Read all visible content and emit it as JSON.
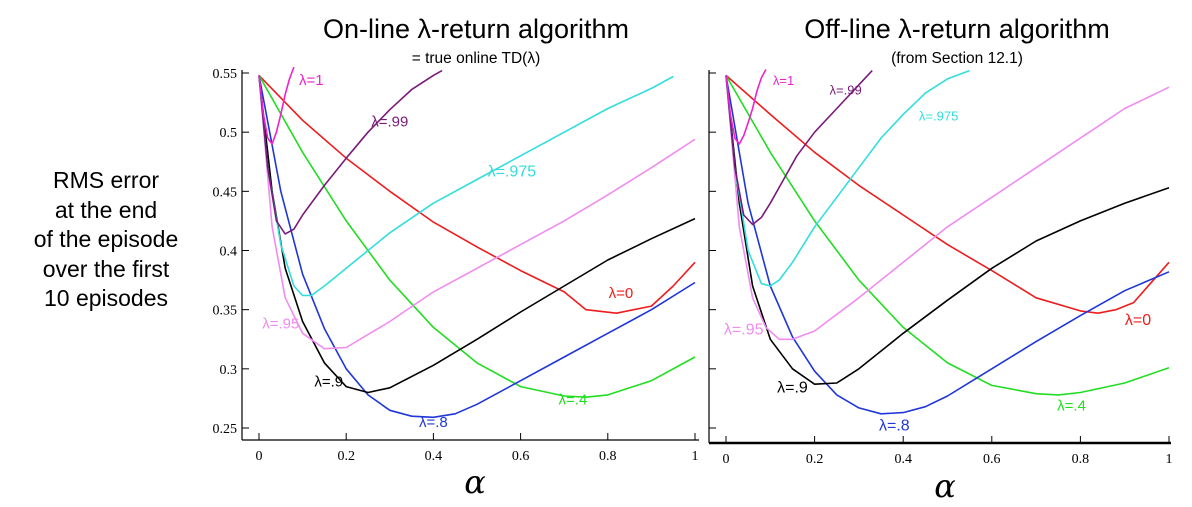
{
  "ylabel_lines": [
    "RMS error",
    "at the end",
    "of the episode",
    "over the first",
    "10 episodes"
  ],
  "chart_data": [
    {
      "type": "line",
      "title": "On-line λ-return algorithm",
      "subtitle": "= true online TD(λ)",
      "xlabel": "α",
      "ylabel": "RMS error at the end of the episode over the first 10 episodes",
      "xlim": [
        0,
        1
      ],
      "ylim": [
        0.24,
        0.55
      ],
      "xticks": [
        "0",
        "0.2",
        "0.4",
        "0.6",
        "0.8",
        "1"
      ],
      "yticks": [
        "0.25",
        "0.3",
        "0.35",
        "0.4",
        "0.45",
        "0.5",
        "0.55"
      ],
      "grid": false,
      "series": [
        {
          "name": "λ=0",
          "color": "#ee1c1c",
          "x": [
            0,
            0.1,
            0.2,
            0.3,
            0.4,
            0.5,
            0.6,
            0.7,
            0.75,
            0.82,
            0.9,
            0.95,
            1.0
          ],
          "y": [
            0.548,
            0.51,
            0.478,
            0.45,
            0.424,
            0.403,
            0.383,
            0.365,
            0.35,
            0.347,
            0.353,
            0.37,
            0.39
          ]
        },
        {
          "name": "λ=.4",
          "color": "#22dd22",
          "x": [
            0,
            0.1,
            0.2,
            0.3,
            0.4,
            0.5,
            0.6,
            0.7,
            0.75,
            0.8,
            0.9,
            1.0
          ],
          "y": [
            0.548,
            0.483,
            0.425,
            0.375,
            0.335,
            0.305,
            0.285,
            0.277,
            0.276,
            0.278,
            0.29,
            0.31
          ]
        },
        {
          "name": "λ=.8",
          "color": "#1f36d8",
          "x": [
            0,
            0.05,
            0.1,
            0.15,
            0.2,
            0.25,
            0.3,
            0.35,
            0.4,
            0.45,
            0.5,
            0.6,
            0.7,
            0.8,
            0.9,
            1.0
          ],
          "y": [
            0.548,
            0.45,
            0.38,
            0.334,
            0.3,
            0.278,
            0.265,
            0.26,
            0.259,
            0.262,
            0.27,
            0.29,
            0.31,
            0.33,
            0.35,
            0.373
          ]
        },
        {
          "name": "λ=.9",
          "color": "#000000",
          "x": [
            0,
            0.03,
            0.06,
            0.1,
            0.15,
            0.2,
            0.25,
            0.3,
            0.4,
            0.5,
            0.6,
            0.7,
            0.8,
            0.9,
            1.0
          ],
          "y": [
            0.548,
            0.45,
            0.385,
            0.34,
            0.305,
            0.285,
            0.28,
            0.284,
            0.303,
            0.325,
            0.348,
            0.37,
            0.392,
            0.41,
            0.427
          ]
        },
        {
          "name": "λ=.95",
          "color": "#f08cf0",
          "x": [
            0,
            0.03,
            0.06,
            0.1,
            0.15,
            0.2,
            0.3,
            0.4,
            0.5,
            0.6,
            0.7,
            0.8,
            0.9,
            1.0
          ],
          "y": [
            0.548,
            0.42,
            0.36,
            0.33,
            0.317,
            0.318,
            0.34,
            0.365,
            0.385,
            0.405,
            0.425,
            0.447,
            0.47,
            0.494
          ]
        },
        {
          "name": "λ=.975",
          "color": "#33dddd",
          "x": [
            0,
            0.02,
            0.05,
            0.08,
            0.1,
            0.12,
            0.15,
            0.2,
            0.3,
            0.4,
            0.5,
            0.6,
            0.7,
            0.8,
            0.9,
            0.95
          ],
          "y": [
            0.548,
            0.47,
            0.405,
            0.37,
            0.362,
            0.362,
            0.37,
            0.385,
            0.415,
            0.44,
            0.46,
            0.48,
            0.5,
            0.52,
            0.537,
            0.547
          ]
        },
        {
          "name": "λ=.99",
          "color": "#7a1a7a",
          "x": [
            0,
            0.02,
            0.04,
            0.06,
            0.08,
            0.1,
            0.15,
            0.2,
            0.25,
            0.3,
            0.35,
            0.4,
            0.42
          ],
          "y": [
            0.548,
            0.47,
            0.425,
            0.414,
            0.418,
            0.43,
            0.455,
            0.478,
            0.5,
            0.519,
            0.536,
            0.548,
            0.552
          ]
        },
        {
          "name": "λ=1",
          "color": "#ee22cc",
          "x": [
            0,
            0.01,
            0.02,
            0.03,
            0.04,
            0.05,
            0.06,
            0.07,
            0.08
          ],
          "y": [
            0.548,
            0.515,
            0.495,
            0.49,
            0.5,
            0.515,
            0.532,
            0.545,
            0.555
          ]
        }
      ]
    },
    {
      "type": "line",
      "title": "Off-line λ-return algorithm",
      "subtitle": "(from Section 12.1)",
      "xlabel": "α",
      "ylabel": "",
      "xlim": [
        0,
        1
      ],
      "ylim": [
        0.24,
        0.55
      ],
      "xticks": [
        "0",
        "0.2",
        "0.4",
        "0.6",
        "0.8",
        "1"
      ],
      "yticks": [],
      "grid": false,
      "series": [
        {
          "name": "λ=0",
          "color": "#ee1c1c",
          "x": [
            0,
            0.1,
            0.2,
            0.3,
            0.4,
            0.5,
            0.6,
            0.7,
            0.8,
            0.84,
            0.88,
            0.92,
            1.0
          ],
          "y": [
            0.548,
            0.515,
            0.483,
            0.455,
            0.43,
            0.405,
            0.383,
            0.36,
            0.349,
            0.347,
            0.35,
            0.356,
            0.39
          ]
        },
        {
          "name": "λ=.4",
          "color": "#22dd22",
          "x": [
            0,
            0.1,
            0.2,
            0.3,
            0.4,
            0.5,
            0.6,
            0.7,
            0.75,
            0.8,
            0.9,
            1.0
          ],
          "y": [
            0.548,
            0.483,
            0.425,
            0.375,
            0.335,
            0.305,
            0.286,
            0.279,
            0.278,
            0.28,
            0.288,
            0.301
          ]
        },
        {
          "name": "λ=.8",
          "color": "#1f36d8",
          "x": [
            0,
            0.05,
            0.1,
            0.15,
            0.2,
            0.25,
            0.3,
            0.35,
            0.4,
            0.45,
            0.5,
            0.6,
            0.7,
            0.8,
            0.9,
            1.0
          ],
          "y": [
            0.548,
            0.44,
            0.37,
            0.327,
            0.298,
            0.278,
            0.267,
            0.262,
            0.263,
            0.268,
            0.277,
            0.3,
            0.323,
            0.345,
            0.366,
            0.382
          ]
        },
        {
          "name": "λ=.9",
          "color": "#000000",
          "x": [
            0,
            0.03,
            0.06,
            0.1,
            0.15,
            0.2,
            0.25,
            0.3,
            0.4,
            0.5,
            0.6,
            0.7,
            0.8,
            0.9,
            1.0
          ],
          "y": [
            0.548,
            0.44,
            0.37,
            0.325,
            0.3,
            0.287,
            0.288,
            0.3,
            0.33,
            0.358,
            0.385,
            0.408,
            0.425,
            0.44,
            0.453
          ]
        },
        {
          "name": "λ=.95",
          "color": "#f08cf0",
          "x": [
            0,
            0.03,
            0.06,
            0.09,
            0.12,
            0.15,
            0.2,
            0.3,
            0.4,
            0.5,
            0.6,
            0.7,
            0.8,
            0.9,
            1.0
          ],
          "y": [
            0.548,
            0.42,
            0.36,
            0.335,
            0.325,
            0.325,
            0.332,
            0.36,
            0.39,
            0.42,
            0.445,
            0.47,
            0.495,
            0.52,
            0.538
          ]
        },
        {
          "name": "λ=.975",
          "color": "#33dddd",
          "x": [
            0,
            0.02,
            0.05,
            0.08,
            0.1,
            0.12,
            0.15,
            0.2,
            0.25,
            0.3,
            0.35,
            0.4,
            0.45,
            0.5,
            0.55
          ],
          "y": [
            0.548,
            0.47,
            0.4,
            0.372,
            0.37,
            0.375,
            0.39,
            0.42,
            0.445,
            0.47,
            0.495,
            0.515,
            0.533,
            0.545,
            0.552
          ]
        },
        {
          "name": "λ=.99",
          "color": "#7a1a7a",
          "x": [
            0,
            0.02,
            0.04,
            0.06,
            0.08,
            0.1,
            0.13,
            0.16,
            0.2,
            0.25,
            0.3,
            0.33
          ],
          "y": [
            0.548,
            0.47,
            0.43,
            0.422,
            0.428,
            0.44,
            0.46,
            0.48,
            0.5,
            0.52,
            0.54,
            0.552
          ]
        },
        {
          "name": "λ=1",
          "color": "#ee22cc",
          "x": [
            0,
            0.01,
            0.02,
            0.03,
            0.04,
            0.05,
            0.06,
            0.07,
            0.08,
            0.09
          ],
          "y": [
            0.548,
            0.515,
            0.495,
            0.49,
            0.497,
            0.508,
            0.52,
            0.535,
            0.546,
            0.553
          ]
        }
      ]
    }
  ]
}
